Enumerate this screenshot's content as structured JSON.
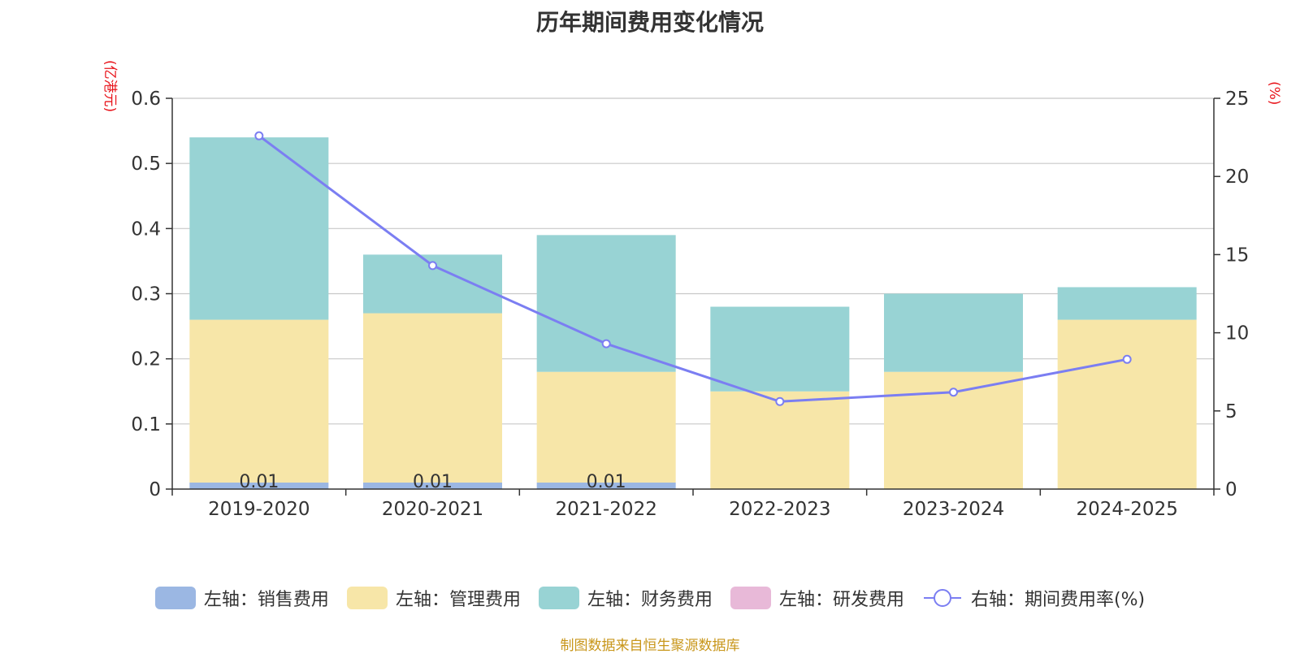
{
  "chart_data": {
    "type": "bar",
    "title": "历年期间费用变化情况",
    "left_unit": "(亿港元)",
    "right_unit": "(%)",
    "categories": [
      "2019-2020",
      "2020-2021",
      "2021-2022",
      "2022-2023",
      "2023-2024",
      "2024-2025"
    ],
    "left_axis": {
      "min": 0,
      "max": 0.6,
      "ticks": [
        "0",
        "0.1",
        "0.2",
        "0.3",
        "0.4",
        "0.5",
        "0.6"
      ]
    },
    "right_axis": {
      "min": 0,
      "max": 25,
      "ticks": [
        "0",
        "5",
        "10",
        "15",
        "20",
        "25"
      ]
    },
    "grid": true,
    "stacked_bars": [
      {
        "name": "左轴：销售费用",
        "color": "#9bb7e3",
        "values": [
          0.01,
          0.01,
          0.01,
          0,
          0,
          0
        ],
        "labels": [
          "0.01",
          "0.01",
          "0.01",
          "",
          "",
          ""
        ]
      },
      {
        "name": "左轴：管理费用",
        "color": "#f7e6a8",
        "values": [
          0.25,
          0.26,
          0.17,
          0.15,
          0.18,
          0.26
        ]
      },
      {
        "name": "左轴：财务费用",
        "color": "#98d3d4",
        "values": [
          0.28,
          0.09,
          0.21,
          0.13,
          0.12,
          0.05
        ]
      },
      {
        "name": "左轴：研发费用",
        "color": "#e8b9d8",
        "values": [
          0,
          0,
          0,
          0,
          0,
          0
        ]
      }
    ],
    "line": {
      "name": "右轴：期间费用率(%)",
      "color": "#7b7ef2",
      "values": [
        22.6,
        14.3,
        9.3,
        5.6,
        6.2,
        8.3
      ]
    },
    "legend_position": "bottom"
  },
  "source": "制图数据来自恒生聚源数据库"
}
